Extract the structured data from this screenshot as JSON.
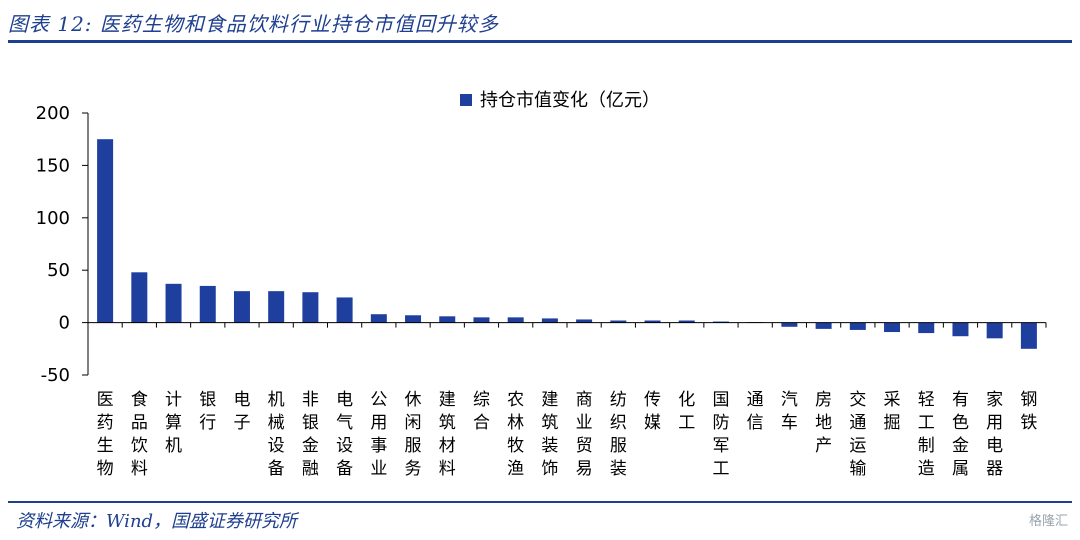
{
  "figure": {
    "title": "图表 12:  医药生物和食品饮料行业持仓市值回升较多",
    "source": "资料来源：Wind，国盛证券研究所",
    "watermark": "格隆汇"
  },
  "colors": {
    "bar": "#1f3f9f",
    "rule": "#1f3f8f",
    "axis": "#000000"
  },
  "chart_data": {
    "type": "bar",
    "title": "",
    "xlabel": "",
    "ylabel": "",
    "ylim": [
      -50,
      200
    ],
    "yticks": [
      -50,
      0,
      50,
      100,
      150,
      200
    ],
    "grid": false,
    "legend_position": "top",
    "categories": [
      "医药生物",
      "食品饮料",
      "计算机",
      "银行",
      "电子",
      "机械设备",
      "非银金融",
      "电气设备",
      "公用事业",
      "休闲服务",
      "建筑材料",
      "综合",
      "农林牧渔",
      "建筑装饰",
      "商业贸易",
      "纺织服装",
      "传媒",
      "化工",
      "国防军工",
      "通信",
      "汽车",
      "房地产",
      "交通运输",
      "采掘",
      "轻工制造",
      "有色金属",
      "家用电器",
      "钢铁"
    ],
    "series": [
      {
        "name": "持仓市值变化（亿元）",
        "values": [
          175,
          48,
          37,
          35,
          30,
          30,
          29,
          24,
          8,
          7,
          6,
          5,
          5,
          4,
          3,
          2,
          2,
          2,
          1,
          0.5,
          -4,
          -6,
          -7,
          -9,
          -10,
          -13,
          -15,
          -25
        ]
      }
    ]
  }
}
